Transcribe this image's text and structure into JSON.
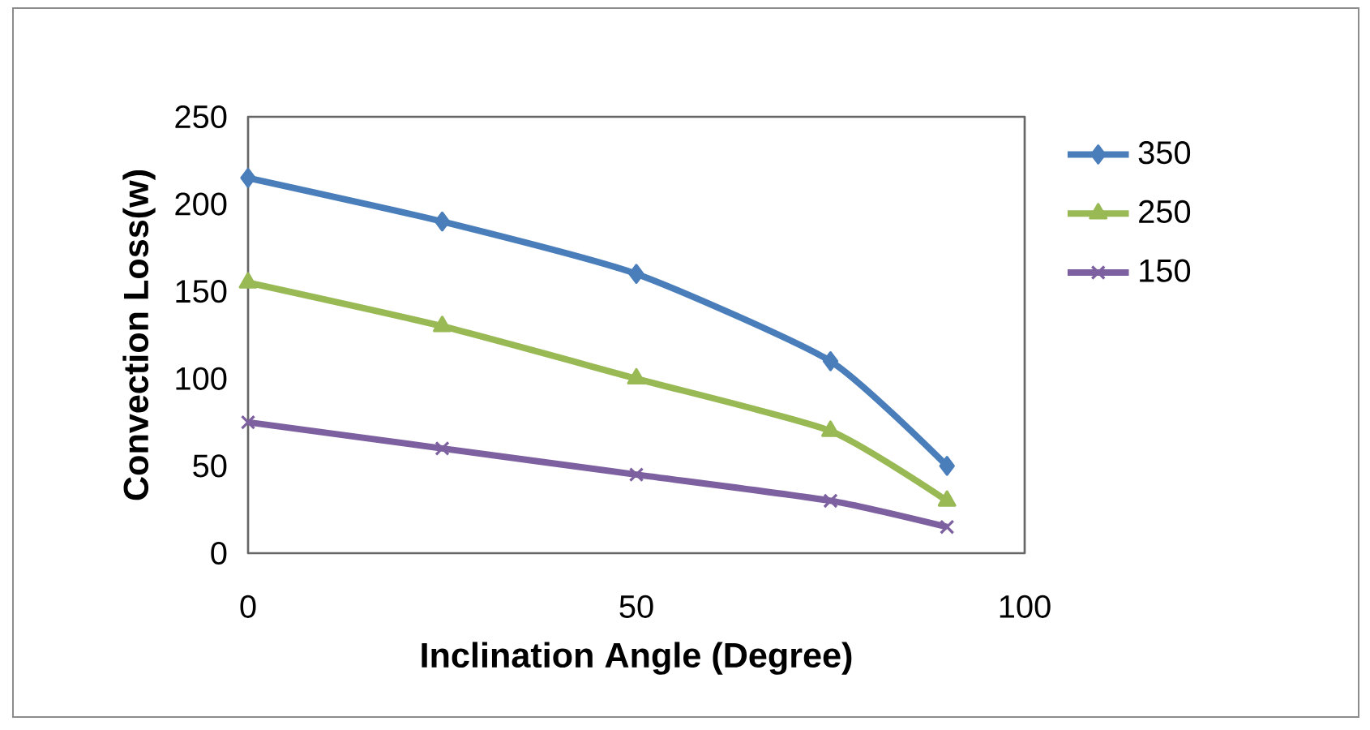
{
  "chart_data": {
    "type": "line",
    "xlabel": "Inclination Angle (Degree)",
    "ylabel": "Convection Loss(w)",
    "x": [
      0,
      25,
      50,
      75,
      90
    ],
    "series": [
      {
        "name": "350",
        "color": "#4a7ebb",
        "marker": "diamond",
        "values": [
          215,
          190,
          160,
          110,
          50
        ]
      },
      {
        "name": "250",
        "color": "#98b954",
        "marker": "triangle",
        "values": [
          155,
          130,
          100,
          70,
          30
        ]
      },
      {
        "name": "150",
        "color": "#7d60a0",
        "marker": "cross",
        "values": [
          75,
          60,
          45,
          30,
          15
        ]
      }
    ],
    "xlim": [
      0,
      100
    ],
    "xticks": [
      0,
      50,
      100
    ],
    "ylim": [
      0,
      250
    ],
    "yticks": [
      0,
      50,
      100,
      150,
      200,
      250
    ],
    "grid": false,
    "legend": "right",
    "line_style": "solid"
  }
}
